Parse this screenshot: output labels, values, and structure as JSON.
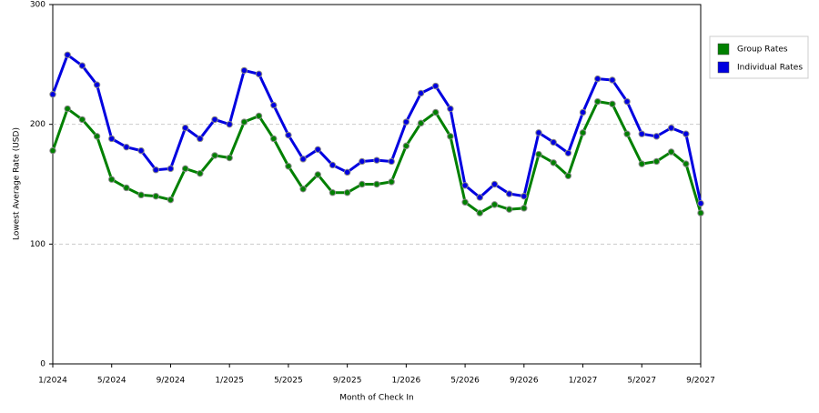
{
  "chart_data": {
    "type": "line",
    "x_label": "Month of Check In",
    "y_label": "Lowest Average Rate (USD)",
    "categories": [
      "1/2024",
      null,
      null,
      null,
      "5/2024",
      null,
      null,
      null,
      "9/2024",
      null,
      null,
      null,
      "1/2025",
      null,
      null,
      null,
      "5/2025",
      null,
      null,
      null,
      "9/2025",
      null,
      null,
      null,
      "1/2026",
      null,
      null,
      null,
      "5/2026",
      null,
      null,
      null,
      "9/2026",
      null,
      null,
      null,
      "1/2027",
      null,
      null,
      null,
      "5/2027",
      null,
      null,
      null,
      "9/2027"
    ],
    "series": [
      {
        "name": "Group Rates",
        "color": "#008000",
        "values": [
          178,
          213,
          204,
          190,
          154,
          147,
          141,
          140,
          137,
          163,
          159,
          174,
          172,
          202,
          207,
          188,
          165,
          146,
          158,
          143,
          143,
          150,
          150,
          152,
          182,
          201,
          210,
          190,
          135,
          126,
          133,
          129,
          130,
          175,
          168,
          157,
          193,
          219,
          217,
          192,
          167,
          169,
          177,
          167,
          126
        ]
      },
      {
        "name": "Individual Rates",
        "color": "#0000e0",
        "values": [
          225,
          258,
          249,
          233,
          188,
          181,
          178,
          162,
          163,
          197,
          188,
          204,
          200,
          245,
          242,
          216,
          191,
          171,
          179,
          166,
          160,
          169,
          170,
          169,
          202,
          226,
          232,
          213,
          149,
          139,
          150,
          142,
          140,
          193,
          185,
          176,
          210,
          238,
          237,
          219,
          192,
          190,
          197,
          192,
          134
        ]
      }
    ],
    "ylim": [
      0,
      300
    ],
    "yticks": [
      0,
      100,
      200,
      300
    ],
    "grid": true,
    "legend": "right"
  }
}
